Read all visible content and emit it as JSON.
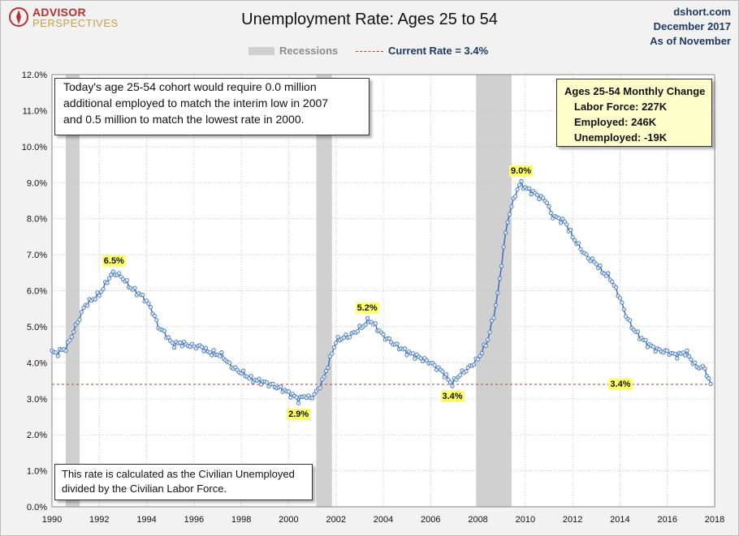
{
  "header": {
    "logo_line1": "ADVISOR",
    "logo_line2": "PERSPECTIVES",
    "title": "Unemployment Rate: Ages 25 to 54",
    "source_lines": [
      "dshort.com",
      "December 2017",
      "As of November"
    ]
  },
  "legend": {
    "recessions_label": "Recessions",
    "current_label": "Current Rate = 3.4%"
  },
  "notes": {
    "top_lines": [
      "Today's age 25-54 cohort would require 0.0 million",
      "additional employed to match the interim low in 2007",
      "and 0.5 million to match the lowest rate in 2000."
    ],
    "bottom_lines": [
      "This rate is calculated as the Civilian Unemployed",
      "divided by the Civilian Labor Force."
    ]
  },
  "monthly_change": {
    "heading": "Ages 25-54 Monthly Change",
    "rows": [
      "Labor Force:  227K",
      "Employed:  246K",
      "Unemployed:  -19K"
    ]
  },
  "colors": {
    "line": "#3b6fb5",
    "marker_fill": "#dbe7f6",
    "recession": "#d0d0d0",
    "current_line": "#c43b3b",
    "annotation_bg": "#ffff66"
  },
  "chart_data": {
    "type": "line",
    "title": "Unemployment Rate: Ages 25 to 54",
    "xlabel": "",
    "ylabel": "",
    "xlim": [
      1990,
      2018
    ],
    "ylim": [
      0,
      12
    ],
    "x_ticks": [
      "1990",
      "1992",
      "1994",
      "1996",
      "1998",
      "2000",
      "2002",
      "2004",
      "2006",
      "2008",
      "2010",
      "2012",
      "2014",
      "2016",
      "2018"
    ],
    "y_ticks": [
      "0.0%",
      "1.0%",
      "2.0%",
      "3.0%",
      "4.0%",
      "5.0%",
      "6.0%",
      "7.0%",
      "8.0%",
      "9.0%",
      "10.0%",
      "11.0%",
      "12.0%"
    ],
    "grid": true,
    "recessions": [
      [
        1990.58,
        1991.17
      ],
      [
        2001.17,
        2001.83
      ],
      [
        2007.92,
        2009.42
      ]
    ],
    "current_rate": 3.4,
    "annotations": [
      {
        "label": "6.5%",
        "x": 1992.6,
        "y": 6.5,
        "placement": "above"
      },
      {
        "label": "2.9%",
        "x": 2000.4,
        "y": 2.9,
        "placement": "below"
      },
      {
        "label": "5.2%",
        "x": 2003.3,
        "y": 5.2,
        "placement": "above"
      },
      {
        "label": "3.4%",
        "x": 2006.9,
        "y": 3.4,
        "placement": "below"
      },
      {
        "label": "9.0%",
        "x": 2009.8,
        "y": 9.0,
        "placement": "above"
      },
      {
        "label": "3.4%",
        "x": 2014.0,
        "y": 3.4,
        "placement": "on-line"
      }
    ],
    "series": [
      {
        "step_months": 1,
        "start_year": 1990,
        "keypoints": [
          [
            1990.0,
            4.3
          ],
          [
            1990.2,
            4.25
          ],
          [
            1990.4,
            4.35
          ],
          [
            1990.6,
            4.4
          ],
          [
            1990.8,
            4.7
          ],
          [
            1991.0,
            5.0
          ],
          [
            1991.2,
            5.3
          ],
          [
            1991.4,
            5.6
          ],
          [
            1991.6,
            5.7
          ],
          [
            1991.8,
            5.8
          ],
          [
            1992.0,
            5.9
          ],
          [
            1992.2,
            6.1
          ],
          [
            1992.4,
            6.35
          ],
          [
            1992.6,
            6.5
          ],
          [
            1992.8,
            6.45
          ],
          [
            1993.0,
            6.35
          ],
          [
            1993.3,
            6.1
          ],
          [
            1993.6,
            5.95
          ],
          [
            1993.9,
            5.8
          ],
          [
            1994.2,
            5.5
          ],
          [
            1994.5,
            5.0
          ],
          [
            1994.8,
            4.8
          ],
          [
            1995.1,
            4.5
          ],
          [
            1995.4,
            4.55
          ],
          [
            1995.7,
            4.5
          ],
          [
            1996.0,
            4.45
          ],
          [
            1996.3,
            4.45
          ],
          [
            1996.6,
            4.3
          ],
          [
            1996.9,
            4.25
          ],
          [
            1997.2,
            4.2
          ],
          [
            1997.5,
            3.95
          ],
          [
            1997.8,
            3.8
          ],
          [
            1998.1,
            3.7
          ],
          [
            1998.4,
            3.55
          ],
          [
            1998.7,
            3.5
          ],
          [
            1999.0,
            3.45
          ],
          [
            1999.4,
            3.35
          ],
          [
            1999.8,
            3.25
          ],
          [
            2000.0,
            3.15
          ],
          [
            2000.3,
            3.05
          ],
          [
            2000.4,
            2.95
          ],
          [
            2000.7,
            3.1
          ],
          [
            2000.9,
            3.0
          ],
          [
            2001.2,
            3.2
          ],
          [
            2001.5,
            3.6
          ],
          [
            2001.8,
            4.2
          ],
          [
            2002.0,
            4.6
          ],
          [
            2002.3,
            4.7
          ],
          [
            2002.6,
            4.75
          ],
          [
            2002.9,
            4.9
          ],
          [
            2003.2,
            5.05
          ],
          [
            2003.4,
            5.2
          ],
          [
            2003.7,
            5.0
          ],
          [
            2004.0,
            4.75
          ],
          [
            2004.5,
            4.5
          ],
          [
            2005.0,
            4.3
          ],
          [
            2005.5,
            4.15
          ],
          [
            2006.0,
            4.0
          ],
          [
            2006.5,
            3.75
          ],
          [
            2006.9,
            3.4
          ],
          [
            2007.2,
            3.65
          ],
          [
            2007.6,
            3.85
          ],
          [
            2008.0,
            4.1
          ],
          [
            2008.4,
            4.6
          ],
          [
            2008.7,
            5.4
          ],
          [
            2008.9,
            6.2
          ],
          [
            2009.1,
            7.3
          ],
          [
            2009.3,
            8.1
          ],
          [
            2009.5,
            8.5
          ],
          [
            2009.65,
            8.8
          ],
          [
            2009.8,
            9.0
          ],
          [
            2010.0,
            8.85
          ],
          [
            2010.3,
            8.75
          ],
          [
            2010.6,
            8.6
          ],
          [
            2010.9,
            8.5
          ],
          [
            2011.1,
            8.1
          ],
          [
            2011.4,
            8.0
          ],
          [
            2011.7,
            7.9
          ],
          [
            2012.0,
            7.5
          ],
          [
            2012.3,
            7.2
          ],
          [
            2012.6,
            6.95
          ],
          [
            2013.0,
            6.75
          ],
          [
            2013.3,
            6.5
          ],
          [
            2013.6,
            6.35
          ],
          [
            2014.0,
            5.8
          ],
          [
            2014.2,
            5.4
          ],
          [
            2014.5,
            5.0
          ],
          [
            2014.8,
            4.75
          ],
          [
            2015.2,
            4.5
          ],
          [
            2015.6,
            4.35
          ],
          [
            2016.0,
            4.3
          ],
          [
            2016.4,
            4.2
          ],
          [
            2016.8,
            4.3
          ],
          [
            2017.2,
            3.9
          ],
          [
            2017.6,
            3.85
          ],
          [
            2017.7,
            3.6
          ],
          [
            2017.83,
            3.4
          ]
        ]
      }
    ]
  }
}
